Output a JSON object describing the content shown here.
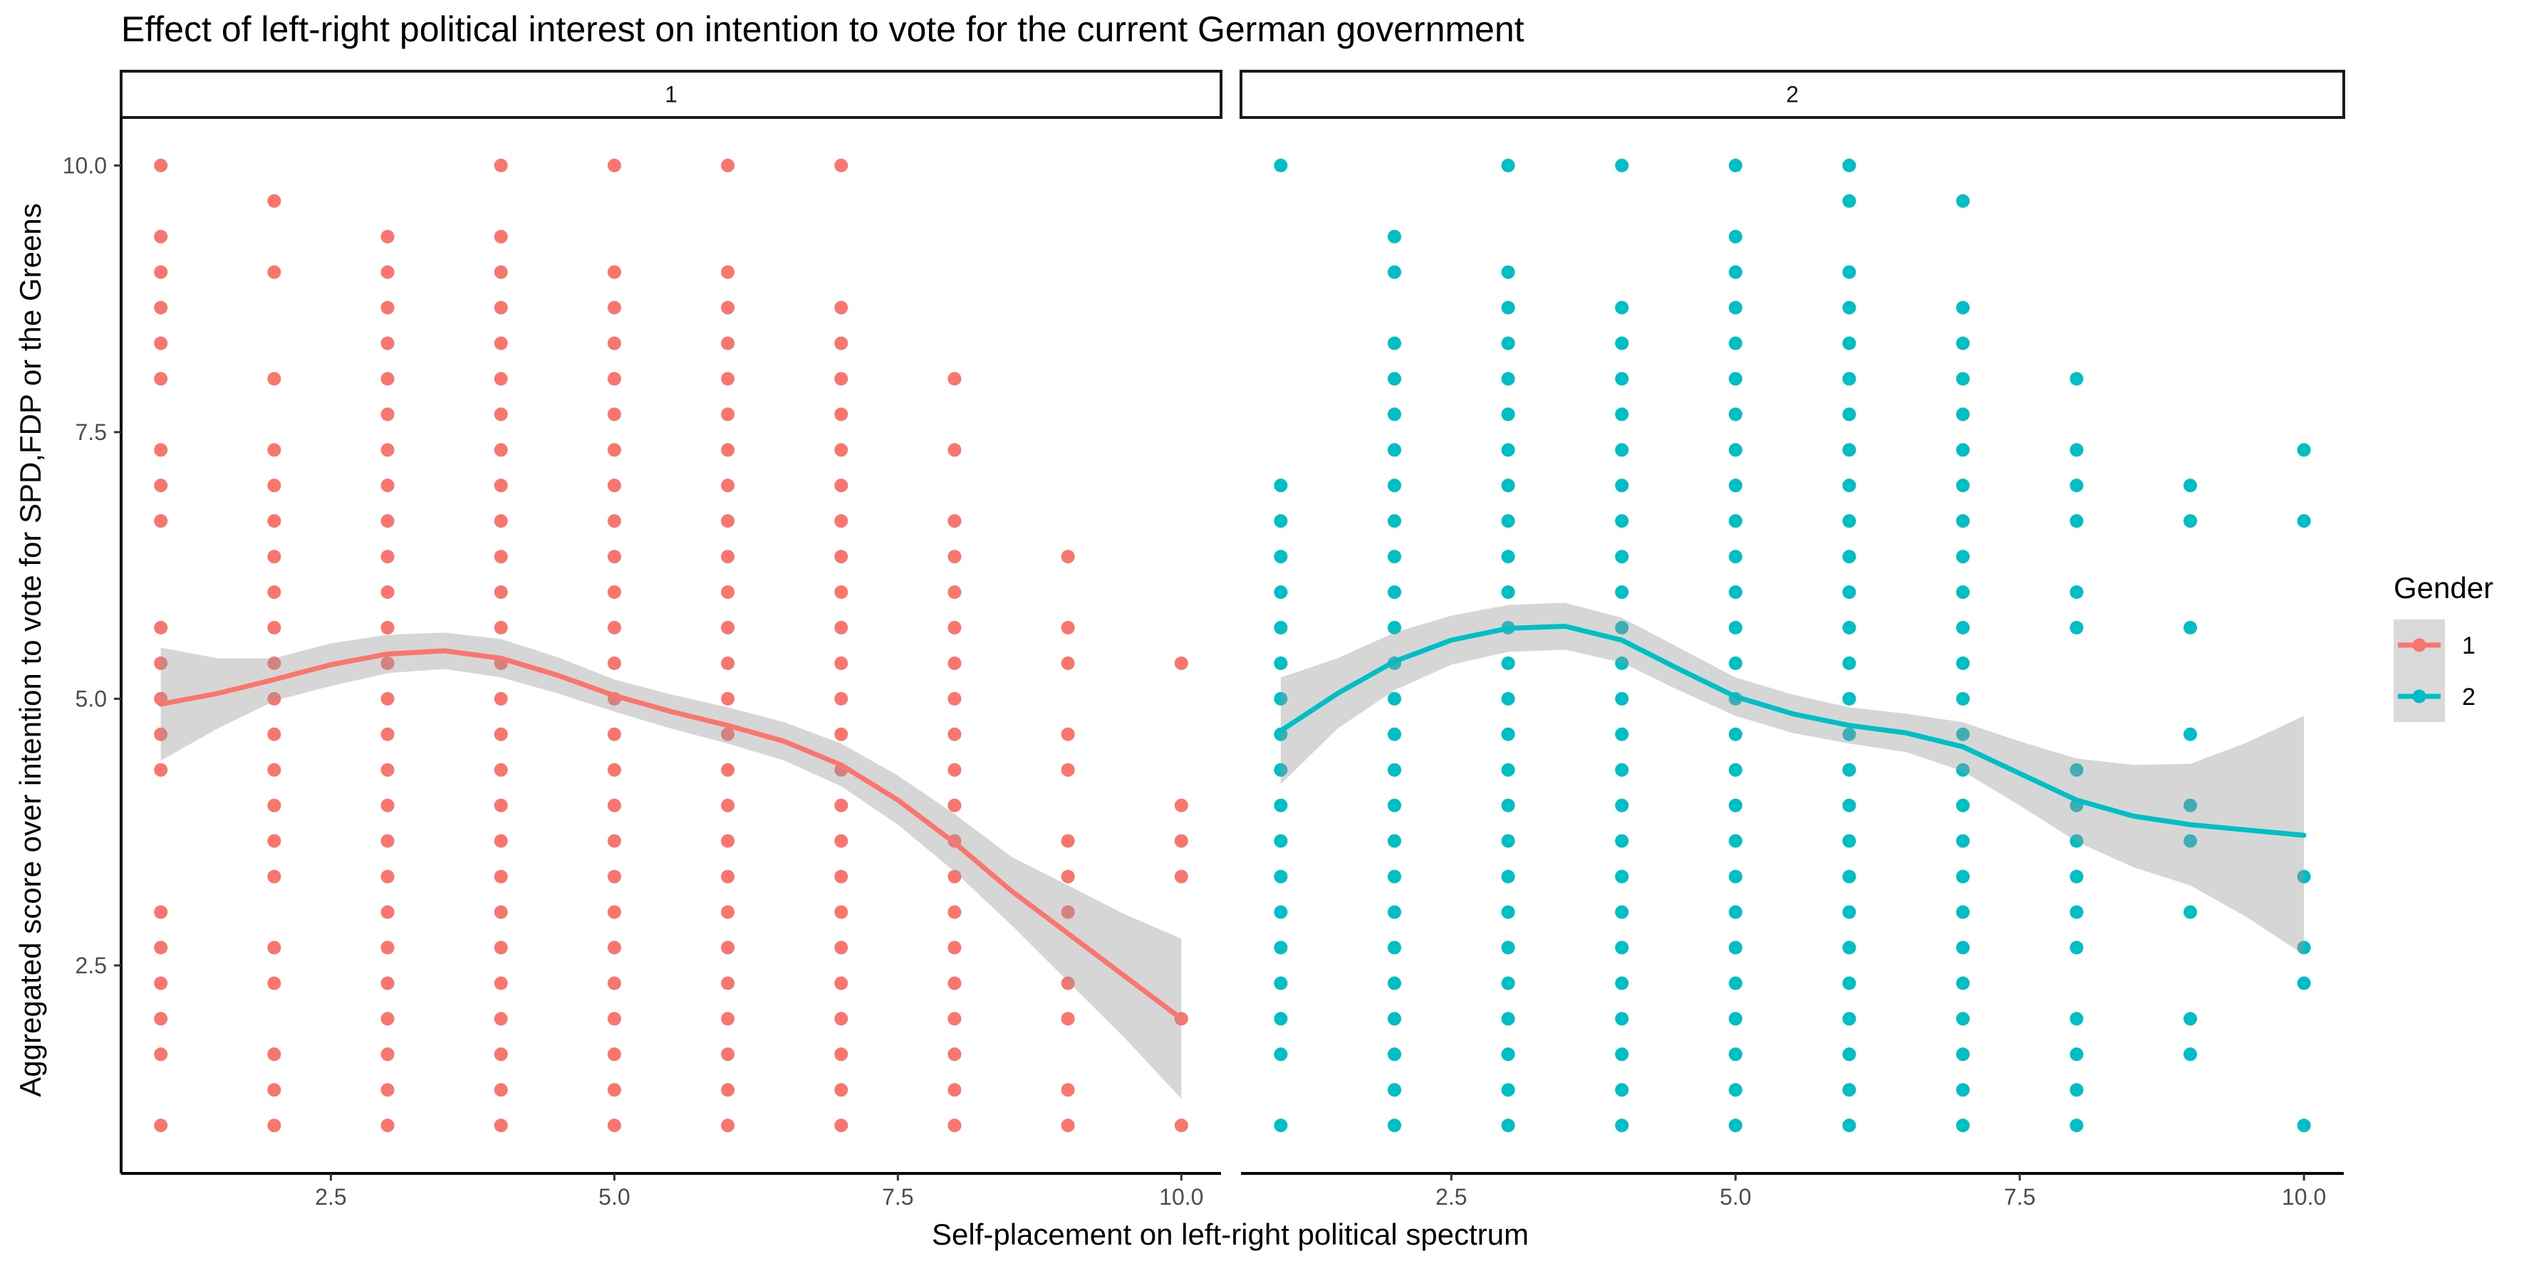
{
  "chart_data": {
    "type": "scatter",
    "title": "Effect of left-right political interest on intention to vote for the current German government",
    "xlabel": "Self-placement on left-right political spectrum",
    "ylabel": "Aggregated score over intention to vote for SPD,FDP or the Greens",
    "xlim": [
      0.65,
      10.35
    ],
    "ylim": [
      0.55,
      10.45
    ],
    "x_ticks": [
      2.5,
      5.0,
      7.5,
      10.0
    ],
    "x_tick_labels": [
      "2.5",
      "5.0",
      "7.5",
      "10.0"
    ],
    "y_ticks": [
      2.5,
      5.0,
      7.5,
      10.0
    ],
    "y_tick_labels": [
      "2.5",
      "5.0",
      "7.5",
      "10.0"
    ],
    "grid": false,
    "legend": {
      "title": "Gender",
      "placement": "right",
      "entries": [
        {
          "label": "1",
          "color": "#F8766D"
        },
        {
          "label": "2",
          "color": "#00BFC4"
        }
      ]
    },
    "panels": [
      {
        "strip": "1",
        "color": "#F8766D",
        "points": {
          "1": [
            1,
            1.667,
            2,
            2.333,
            2.667,
            3,
            4.333,
            4.667,
            5,
            5.333,
            5.667,
            6.667,
            7,
            7.333,
            8,
            8.333,
            8.667,
            9,
            9.333,
            10
          ],
          "2": [
            1,
            1.333,
            1.667,
            2.333,
            2.667,
            3.333,
            3.667,
            4,
            4.333,
            4.667,
            5,
            5.333,
            5.667,
            6,
            6.333,
            6.667,
            7,
            7.333,
            8,
            9,
            9.667
          ],
          "3": [
            1,
            1.333,
            1.667,
            2,
            2.333,
            2.667,
            3,
            3.333,
            3.667,
            4,
            4.333,
            4.667,
            5,
            5.333,
            5.667,
            6,
            6.333,
            6.667,
            7,
            7.333,
            7.667,
            8,
            8.333,
            8.667,
            9,
            9.333
          ],
          "4": [
            1,
            1.333,
            1.667,
            2,
            2.333,
            2.667,
            3,
            3.333,
            3.667,
            4,
            4.333,
            4.667,
            5,
            5.333,
            5.667,
            6,
            6.333,
            6.667,
            7,
            7.333,
            7.667,
            8,
            8.333,
            8.667,
            9,
            9.333,
            10
          ],
          "5": [
            1,
            1.333,
            1.667,
            2,
            2.333,
            2.667,
            3,
            3.333,
            3.667,
            4,
            4.333,
            4.667,
            5,
            5.333,
            5.667,
            6,
            6.333,
            6.667,
            7,
            7.333,
            7.667,
            8,
            8.333,
            8.667,
            9,
            10
          ],
          "6": [
            1,
            1.333,
            1.667,
            2,
            2.333,
            2.667,
            3,
            3.333,
            3.667,
            4,
            4.333,
            4.667,
            5,
            5.333,
            5.667,
            6,
            6.333,
            6.667,
            7,
            7.333,
            7.667,
            8,
            8.333,
            8.667,
            9,
            10
          ],
          "7": [
            1,
            1.333,
            1.667,
            2,
            2.333,
            2.667,
            3,
            3.333,
            3.667,
            4,
            4.333,
            4.667,
            5,
            5.333,
            5.667,
            6,
            6.333,
            6.667,
            7,
            7.333,
            7.667,
            8,
            8.333,
            8.667,
            10
          ],
          "8": [
            1,
            1.333,
            1.667,
            2,
            2.333,
            2.667,
            3,
            3.333,
            3.667,
            4,
            4.333,
            4.667,
            5,
            5.333,
            5.667,
            6,
            6.333,
            6.667,
            7.333,
            8
          ],
          "9": [
            1,
            1.333,
            2,
            2.333,
            3,
            3.333,
            3.667,
            4.333,
            4.667,
            5.333,
            5.667,
            6.333
          ],
          "10": [
            1,
            2,
            3.333,
            3.667,
            4,
            5.333
          ]
        },
        "smooth": {
          "x": [
            1,
            1.5,
            2,
            2.5,
            3,
            3.5,
            4,
            4.5,
            5,
            5.5,
            6,
            6.5,
            7,
            7.5,
            8,
            8.5,
            9,
            9.5,
            10
          ],
          "y": [
            4.95,
            5.05,
            5.18,
            5.32,
            5.42,
            5.45,
            5.38,
            5.22,
            5.03,
            4.88,
            4.75,
            4.6,
            4.38,
            4.05,
            3.65,
            3.2,
            2.8,
            2.4,
            2.0
          ],
          "lower": [
            4.42,
            4.72,
            4.98,
            5.12,
            5.24,
            5.28,
            5.2,
            5.05,
            4.88,
            4.72,
            4.58,
            4.42,
            4.18,
            3.82,
            3.38,
            2.88,
            2.35,
            1.82,
            1.25
          ],
          "upper": [
            5.48,
            5.38,
            5.38,
            5.52,
            5.6,
            5.62,
            5.56,
            5.39,
            5.18,
            5.04,
            4.92,
            4.78,
            4.58,
            4.28,
            3.92,
            3.52,
            3.25,
            2.98,
            2.75
          ]
        }
      },
      {
        "strip": "2",
        "color": "#00BFC4",
        "points": {
          "1": [
            1,
            1.667,
            2,
            2.333,
            2.667,
            3,
            3.333,
            3.667,
            4,
            4.333,
            4.667,
            5,
            5.333,
            5.667,
            6,
            6.333,
            6.667,
            7,
            10
          ],
          "2": [
            1,
            1.333,
            1.667,
            2,
            2.333,
            2.667,
            3,
            3.333,
            3.667,
            4,
            4.333,
            4.667,
            5,
            5.333,
            5.667,
            6,
            6.333,
            6.667,
            7,
            7.333,
            7.667,
            8,
            8.333,
            9,
            9.333
          ],
          "3": [
            1,
            1.333,
            1.667,
            2,
            2.333,
            2.667,
            3,
            3.333,
            3.667,
            4,
            4.333,
            4.667,
            5,
            5.333,
            5.667,
            6,
            6.333,
            6.667,
            7,
            7.333,
            7.667,
            8,
            8.333,
            8.667,
            9,
            10
          ],
          "4": [
            1,
            1.333,
            1.667,
            2,
            2.333,
            2.667,
            3,
            3.333,
            3.667,
            4,
            4.333,
            4.667,
            5,
            5.333,
            5.667,
            6,
            6.333,
            6.667,
            7,
            7.333,
            7.667,
            8,
            8.333,
            8.667,
            10
          ],
          "5": [
            1,
            1.333,
            1.667,
            2,
            2.333,
            2.667,
            3,
            3.333,
            3.667,
            4,
            4.333,
            4.667,
            5,
            5.333,
            5.667,
            6,
            6.333,
            6.667,
            7,
            7.333,
            7.667,
            8,
            8.333,
            8.667,
            9,
            9.333,
            10
          ],
          "6": [
            1,
            1.333,
            1.667,
            2,
            2.333,
            2.667,
            3,
            3.333,
            3.667,
            4,
            4.333,
            4.667,
            5,
            5.333,
            5.667,
            6,
            6.333,
            6.667,
            7,
            7.333,
            7.667,
            8,
            8.333,
            8.667,
            9,
            9.667,
            10
          ],
          "7": [
            1,
            1.333,
            1.667,
            2,
            2.333,
            2.667,
            3,
            3.333,
            3.667,
            4,
            4.333,
            4.667,
            5,
            5.333,
            5.667,
            6,
            6.333,
            6.667,
            7,
            7.333,
            7.667,
            8,
            8.333,
            8.667,
            9.667
          ],
          "8": [
            1,
            1.333,
            1.667,
            2,
            2.667,
            3,
            3.333,
            3.667,
            4,
            4.333,
            5.667,
            6,
            6.667,
            7,
            7.333,
            8
          ],
          "9": [
            1.667,
            2,
            3,
            3.667,
            4,
            4.667,
            5.667,
            6.667,
            7
          ],
          "10": [
            1,
            2.333,
            2.667,
            3.333,
            6.667,
            7.333
          ]
        },
        "smooth": {
          "x": [
            1,
            1.5,
            2,
            2.5,
            3,
            3.5,
            4,
            4.5,
            5,
            5.5,
            6,
            6.5,
            7,
            7.5,
            8,
            8.5,
            9,
            9.5,
            10
          ],
          "y": [
            4.7,
            5.05,
            5.35,
            5.55,
            5.66,
            5.68,
            5.55,
            5.28,
            5.02,
            4.86,
            4.75,
            4.68,
            4.55,
            4.3,
            4.05,
            3.9,
            3.82,
            3.77,
            3.72
          ],
          "lower": [
            4.2,
            4.72,
            5.08,
            5.32,
            5.44,
            5.46,
            5.34,
            5.08,
            4.84,
            4.68,
            4.58,
            4.5,
            4.32,
            4.0,
            3.66,
            3.42,
            3.25,
            2.95,
            2.6
          ],
          "upper": [
            5.2,
            5.38,
            5.62,
            5.78,
            5.88,
            5.9,
            5.76,
            5.48,
            5.2,
            5.04,
            4.92,
            4.86,
            4.78,
            4.6,
            4.44,
            4.38,
            4.39,
            4.59,
            4.84
          ]
        }
      }
    ]
  }
}
